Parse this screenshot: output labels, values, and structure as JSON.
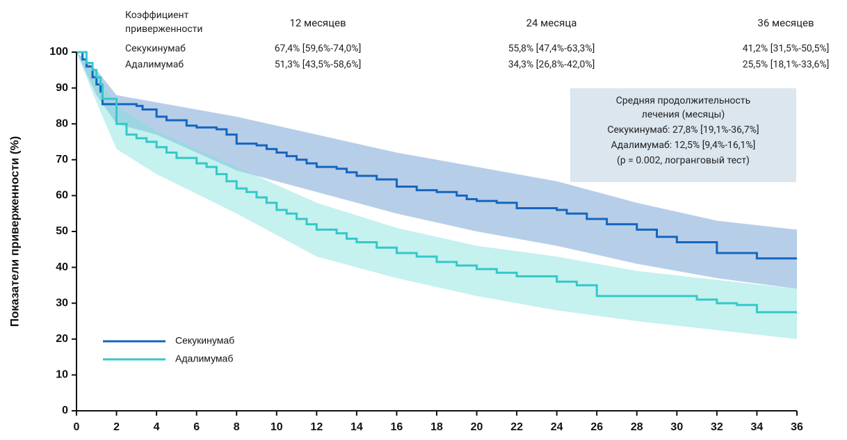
{
  "chart_data": {
    "type": "line",
    "step": true,
    "ylabel": "Показатели приверженности (%)",
    "xlim": [
      0,
      36
    ],
    "xticks": [
      0,
      2,
      4,
      6,
      8,
      10,
      12,
      14,
      16,
      18,
      20,
      22,
      24,
      26,
      28,
      30,
      32,
      34,
      36
    ],
    "ylim": [
      0,
      100
    ],
    "yticks": [
      0,
      10,
      20,
      30,
      40,
      50,
      60,
      70,
      80,
      90,
      100
    ],
    "legend": "lower left",
    "series": [
      {
        "name": "Секукинумаб",
        "color": "#1565c0",
        "band_color": "#5f93cf",
        "x": [
          0,
          0.3,
          0.5,
          0.8,
          1.0,
          1.2,
          1.3,
          3,
          3.3,
          4,
          4.5,
          5.5,
          6,
          7,
          7.5,
          8,
          9,
          9.5,
          10,
          10.5,
          11,
          11.5,
          12,
          13,
          13.5,
          14,
          15,
          16,
          17,
          18,
          19,
          19.5,
          20,
          21,
          22,
          24,
          24.5,
          25.5,
          26.5,
          28,
          29,
          30,
          31,
          32,
          34,
          36
        ],
        "values": [
          100,
          98,
          96,
          93,
          91,
          89,
          85.5,
          85,
          84,
          82,
          81,
          79.5,
          79,
          78.5,
          77,
          74.5,
          74,
          73,
          72,
          71,
          70,
          69,
          68,
          67.5,
          66.5,
          65.5,
          64.5,
          62.5,
          61.5,
          61,
          60,
          59,
          58.5,
          58,
          56.5,
          56,
          55,
          53.5,
          52,
          50.5,
          48.5,
          47,
          47,
          44,
          42.5,
          42.5
        ],
        "band_x": [
          0,
          1,
          2,
          4,
          8,
          12,
          16,
          20,
          24,
          28,
          32,
          36
        ],
        "band_upper": [
          100,
          95,
          88,
          86,
          82,
          77,
          72,
          68,
          64,
          58,
          53,
          50.5
        ],
        "band_lower": [
          100,
          88,
          80,
          77,
          67,
          61,
          55,
          50,
          46,
          41,
          37,
          34
        ]
      },
      {
        "name": "Адалимумаб",
        "color": "#35c8c8",
        "band_color": "#7fe0dc",
        "x": [
          0,
          0.5,
          0.8,
          1,
          1.2,
          1.3,
          2,
          2.5,
          3,
          3.5,
          4,
          4.5,
          5,
          6,
          6.5,
          7,
          7.5,
          8,
          8.5,
          9,
          9.5,
          10,
          10.5,
          11,
          11.5,
          12,
          13,
          13.5,
          14,
          15,
          16,
          17,
          18,
          19,
          20,
          21,
          22,
          24,
          25,
          26,
          27,
          30,
          31,
          32,
          33,
          34,
          36
        ],
        "values": [
          100,
          97,
          95,
          93,
          91,
          87,
          80,
          77,
          76,
          75,
          73.5,
          72,
          70.5,
          69,
          68,
          66,
          64,
          62,
          61,
          59.5,
          58,
          56,
          55,
          53.5,
          52,
          50.5,
          49.5,
          48,
          47,
          45.5,
          44,
          43,
          41.5,
          40.5,
          39.5,
          38.5,
          37.5,
          36,
          35,
          32,
          32,
          32,
          31,
          30,
          29.5,
          27.5,
          27.5
        ],
        "band_x": [
          0,
          1,
          2,
          4,
          8,
          12,
          16,
          20,
          24,
          28,
          32,
          36
        ],
        "band_upper": [
          100,
          94,
          85,
          78,
          68,
          58,
          51,
          46,
          43,
          39,
          36.5,
          34
        ],
        "band_lower": [
          100,
          86,
          73,
          66,
          55,
          43,
          37,
          32,
          28,
          25,
          22.5,
          20
        ]
      }
    ],
    "table": {
      "header": [
        "Коэффициент приверженности",
        "12 месяцев",
        "24 месяца",
        "36 месяцев"
      ],
      "rows": [
        [
          "Секукинумаб",
          "67,4% [59,6%-74,0%]",
          "55,8% [47,4%-63,3%]",
          "41,2% [31,5%-50,5%]"
        ],
        [
          "Адалимумаб",
          "51,3% [43,5%-58,6%]",
          "34,3% [26,8%-42,0%]",
          "25,5% [18,1%-33,6%]"
        ]
      ]
    },
    "annotation": [
      "Средняя продолжительность лечения (месяцы)",
      "Секукинумаб: 27,8% [19,1%-36,7%]",
      "Адалимумаб: 12,5% [9,4%-16,1%]",
      "(p = 0.002, логранговый тест)"
    ]
  }
}
